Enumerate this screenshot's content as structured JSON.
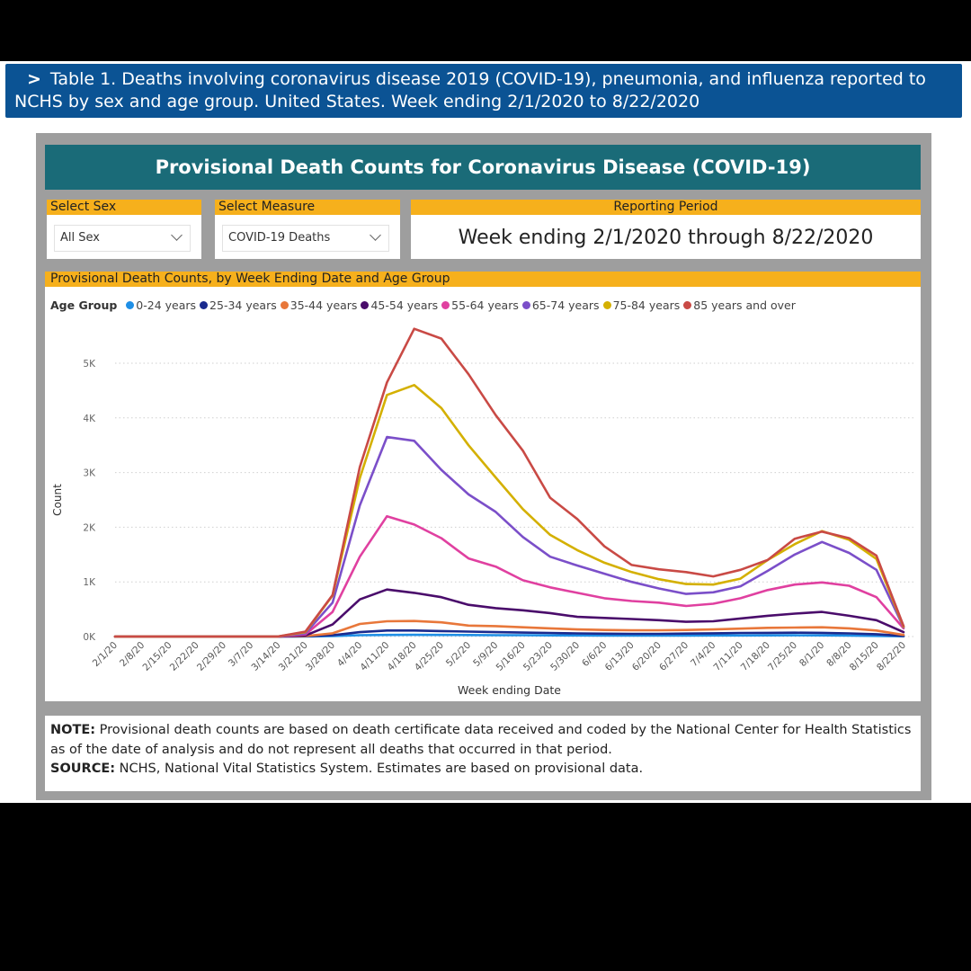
{
  "table_header": {
    "chevron": ">",
    "text": "Table 1. Deaths involving coronavirus disease 2019 (COVID-19), pneumonia, and influenza reported to NCHS by sex and age group. United States. Week ending 2/1/2020 to 8/22/2020"
  },
  "dashboard_title": "Provisional Death Counts for Coronavirus Disease (COVID-19)",
  "filters": {
    "sex": {
      "label": "Select Sex",
      "value": "All Sex"
    },
    "measure": {
      "label": "Select Measure",
      "value": "COVID-19 Deaths"
    },
    "period": {
      "label": "Reporting Period",
      "value": "Week ending 2/1/2020 through 8/22/2020"
    }
  },
  "chart_panel_title": "Provisional Death Counts, by Week Ending Date and Age Group",
  "legend_title": "Age Group",
  "chart_data": {
    "type": "line",
    "title": "Provisional Death Counts, by Week Ending Date and Age Group",
    "xlabel": "Week ending Date",
    "ylabel": "Count",
    "ylim": [
      0,
      5000
    ],
    "yticks": [
      {
        "value": 0,
        "label": "0K"
      },
      {
        "value": 1000,
        "label": "1K"
      },
      {
        "value": 2000,
        "label": "2K"
      },
      {
        "value": 3000,
        "label": "3K"
      },
      {
        "value": 4000,
        "label": "4K"
      },
      {
        "value": 5000,
        "label": "5K"
      }
    ],
    "grid": true,
    "legend_position": "top-left",
    "categories": [
      "2/1/20",
      "2/8/20",
      "2/15/20",
      "2/22/20",
      "2/29/20",
      "3/7/20",
      "3/14/20",
      "3/21/20",
      "3/28/20",
      "4/4/20",
      "4/11/20",
      "4/18/20",
      "4/25/20",
      "5/2/20",
      "5/9/20",
      "5/16/20",
      "5/23/20",
      "5/30/20",
      "6/6/20",
      "6/13/20",
      "6/20/20",
      "6/27/20",
      "7/4/20",
      "7/11/20",
      "7/18/20",
      "7/25/20",
      "8/1/20",
      "8/8/20",
      "8/15/20",
      "8/22/20"
    ],
    "series": [
      {
        "name": "0-24 years",
        "color": "#1f8fe6",
        "values": [
          0,
          0,
          0,
          0,
          0,
          0,
          0,
          2,
          8,
          25,
          30,
          32,
          30,
          28,
          25,
          24,
          22,
          20,
          18,
          17,
          18,
          18,
          20,
          20,
          22,
          23,
          22,
          18,
          12,
          5
        ]
      },
      {
        "name": "25-34 years",
        "color": "#1a2a8e",
        "values": [
          0,
          0,
          0,
          0,
          0,
          0,
          0,
          5,
          25,
          80,
          110,
          110,
          100,
          90,
          80,
          72,
          65,
          58,
          52,
          50,
          50,
          55,
          60,
          65,
          68,
          70,
          68,
          58,
          42,
          12
        ]
      },
      {
        "name": "35-44 years",
        "color": "#e8773a",
        "values": [
          0,
          0,
          0,
          0,
          0,
          0,
          0,
          8,
          60,
          230,
          280,
          285,
          260,
          200,
          190,
          170,
          150,
          130,
          120,
          115,
          115,
          120,
          130,
          145,
          160,
          165,
          170,
          150,
          110,
          30
        ]
      },
      {
        "name": "45-54 years",
        "color": "#4a0c6b",
        "values": [
          0,
          0,
          0,
          0,
          0,
          0,
          1,
          20,
          220,
          680,
          860,
          800,
          720,
          580,
          520,
          480,
          430,
          360,
          340,
          320,
          300,
          270,
          280,
          330,
          380,
          420,
          450,
          380,
          300,
          80
        ]
      },
      {
        "name": "55-64 years",
        "color": "#e040a0",
        "values": [
          0,
          0,
          0,
          0,
          0,
          0,
          1,
          40,
          450,
          1460,
          2200,
          2050,
          1800,
          1430,
          1280,
          1030,
          900,
          800,
          700,
          650,
          620,
          560,
          600,
          700,
          850,
          950,
          990,
          930,
          720,
          150
        ]
      },
      {
        "name": "65-74 years",
        "color": "#7b4fc9",
        "values": [
          0,
          0,
          0,
          0,
          0,
          0,
          1,
          60,
          620,
          2400,
          3650,
          3580,
          3050,
          2600,
          2280,
          1820,
          1460,
          1300,
          1150,
          1000,
          880,
          780,
          810,
          920,
          1200,
          1500,
          1730,
          1530,
          1220,
          170
        ]
      },
      {
        "name": "75-84 years",
        "color": "#d4b000",
        "values": [
          0,
          0,
          0,
          0,
          0,
          0,
          2,
          80,
          750,
          2900,
          4420,
          4600,
          4180,
          3500,
          2910,
          2330,
          1860,
          1580,
          1350,
          1180,
          1050,
          960,
          950,
          1060,
          1400,
          1690,
          1930,
          1770,
          1420,
          180
        ]
      },
      {
        "name": "85 years and over",
        "color": "#c94a45",
        "values": [
          0,
          0,
          0,
          0,
          0,
          0,
          2,
          90,
          760,
          3100,
          4650,
          5630,
          5450,
          4800,
          4050,
          3400,
          2540,
          2150,
          1650,
          1310,
          1230,
          1180,
          1100,
          1220,
          1400,
          1790,
          1920,
          1800,
          1480,
          190
        ]
      }
    ]
  },
  "note": {
    "note_label": "NOTE:",
    "note_text": "Provisional death counts are based on death certificate data received and coded by the National Center for Health Statistics as of the date of analysis and do not represent all deaths that occurred in that period.",
    "source_label": "SOURCE:",
    "source_text": "NCHS, National Vital Statistics System. Estimates are based on provisional data."
  }
}
